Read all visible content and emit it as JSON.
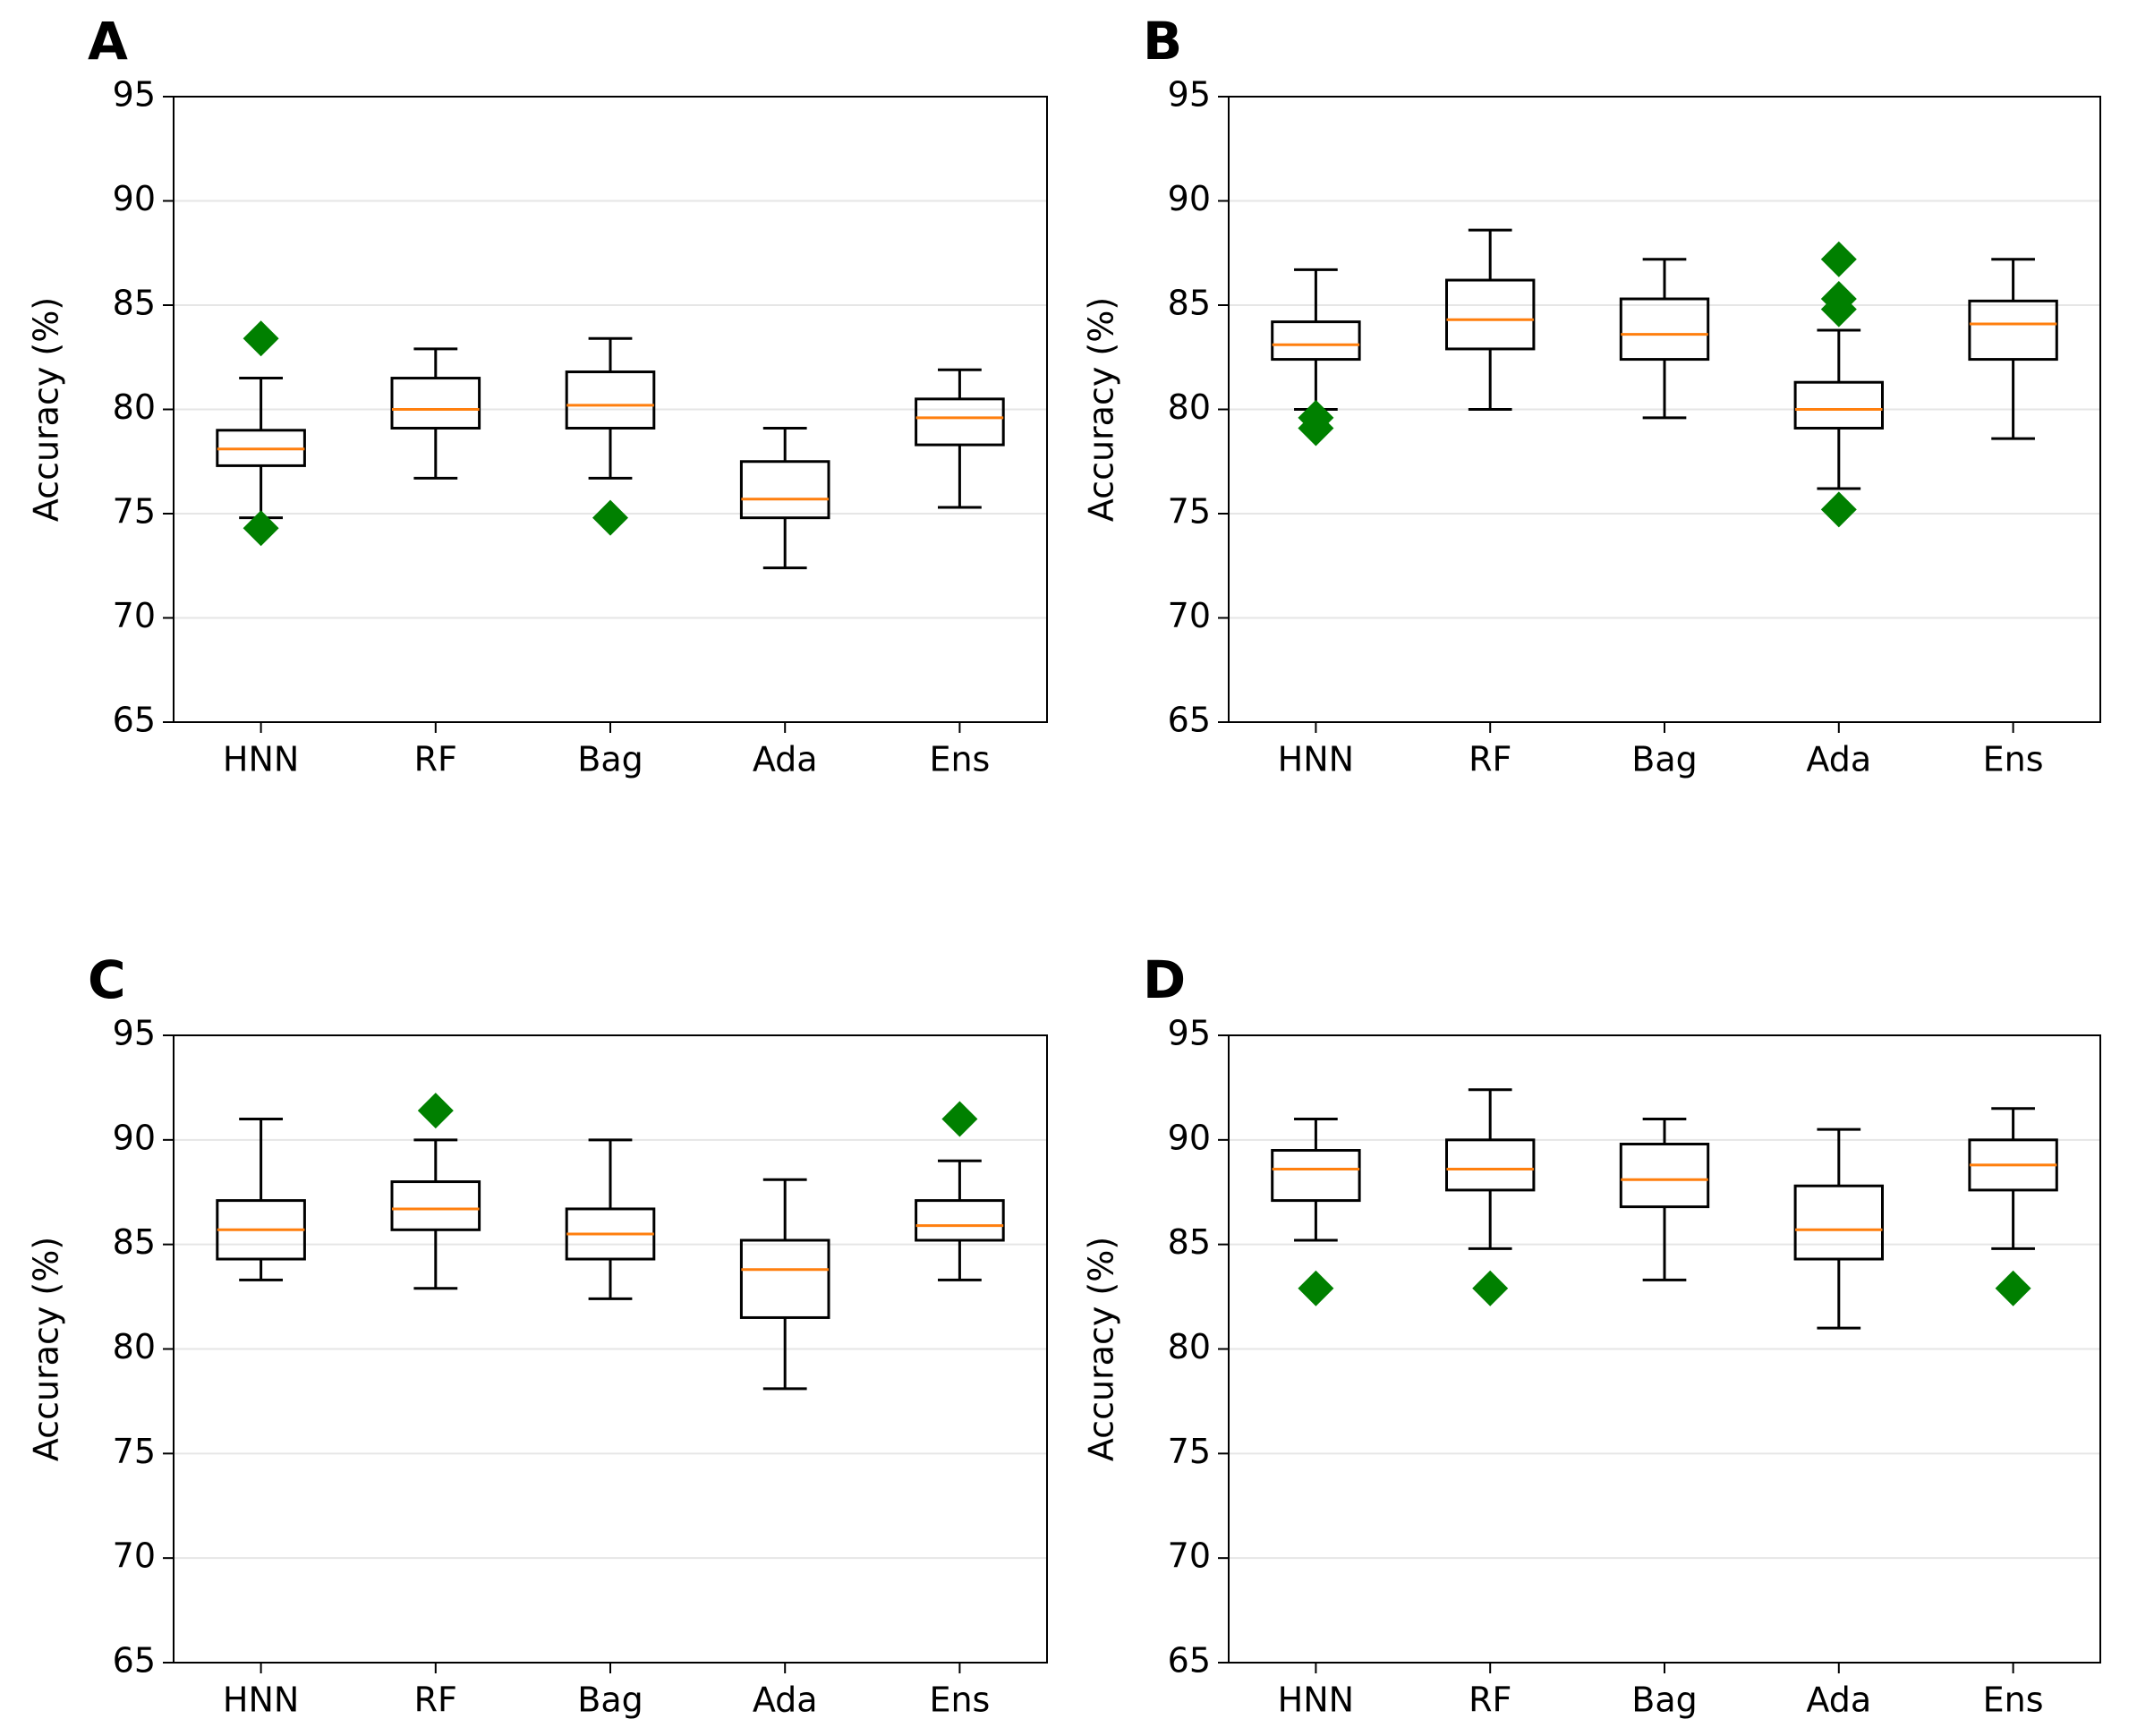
{
  "chart_data": [
    {
      "type": "box",
      "title": "A",
      "y_label": "Accuracy (%)",
      "categories": [
        "HNN",
        "RF",
        "Bag",
        "Ada",
        "Ens"
      ],
      "boxes": [
        {
          "whisker_low": 74.8,
          "q1": 77.3,
          "median": 78.1,
          "q3": 79.0,
          "whisker_high": 81.5,
          "outliers": [
            83.4,
            74.3
          ]
        },
        {
          "whisker_low": 76.7,
          "q1": 79.1,
          "median": 80.0,
          "q3": 81.5,
          "whisker_high": 82.9,
          "outliers": []
        },
        {
          "whisker_low": 76.7,
          "q1": 79.1,
          "median": 80.2,
          "q3": 81.8,
          "whisker_high": 83.4,
          "outliers": [
            74.8
          ]
        },
        {
          "whisker_low": 72.4,
          "q1": 74.8,
          "median": 75.7,
          "q3": 77.5,
          "whisker_high": 79.1,
          "outliers": []
        },
        {
          "whisker_low": 75.3,
          "q1": 78.3,
          "median": 79.6,
          "q3": 80.5,
          "whisker_high": 81.9,
          "outliers": []
        }
      ],
      "ylim": [
        65,
        95
      ],
      "yticks": [
        65,
        70,
        75,
        80,
        85,
        90,
        95
      ],
      "grid": true,
      "box_color": "#000000",
      "median_color": "#ff7f0e",
      "outlier_color": "#008000"
    },
    {
      "type": "box",
      "title": "B",
      "y_label": "Accuracy (%)",
      "categories": [
        "HNN",
        "RF",
        "Bag",
        "Ada",
        "Ens"
      ],
      "boxes": [
        {
          "whisker_low": 80.0,
          "q1": 82.4,
          "median": 83.1,
          "q3": 84.2,
          "whisker_high": 86.7,
          "outliers": [
            79.6,
            79.1
          ]
        },
        {
          "whisker_low": 80.0,
          "q1": 82.9,
          "median": 84.3,
          "q3": 86.2,
          "whisker_high": 88.6,
          "outliers": []
        },
        {
          "whisker_low": 79.6,
          "q1": 82.4,
          "median": 83.6,
          "q3": 85.3,
          "whisker_high": 87.2,
          "outliers": []
        },
        {
          "whisker_low": 76.2,
          "q1": 79.1,
          "median": 80.0,
          "q3": 81.3,
          "whisker_high": 83.8,
          "outliers": [
            87.2,
            85.3,
            84.8,
            75.2
          ]
        },
        {
          "whisker_low": 78.6,
          "q1": 82.4,
          "median": 84.1,
          "q3": 85.2,
          "whisker_high": 87.2,
          "outliers": []
        }
      ],
      "ylim": [
        65,
        95
      ],
      "yticks": [
        65,
        70,
        75,
        80,
        85,
        90,
        95
      ],
      "grid": true,
      "box_color": "#000000",
      "median_color": "#ff7f0e",
      "outlier_color": "#008000"
    },
    {
      "type": "box",
      "title": "C",
      "y_label": "Accuracy (%)",
      "categories": [
        "HNN",
        "RF",
        "Bag",
        "Ada",
        "Ens"
      ],
      "boxes": [
        {
          "whisker_low": 83.3,
          "q1": 84.3,
          "median": 85.7,
          "q3": 87.1,
          "whisker_high": 91.0,
          "outliers": []
        },
        {
          "whisker_low": 82.9,
          "q1": 85.7,
          "median": 86.7,
          "q3": 88.0,
          "whisker_high": 90.0,
          "outliers": [
            91.4
          ]
        },
        {
          "whisker_low": 82.4,
          "q1": 84.3,
          "median": 85.5,
          "q3": 86.7,
          "whisker_high": 90.0,
          "outliers": []
        },
        {
          "whisker_low": 78.1,
          "q1": 81.5,
          "median": 83.8,
          "q3": 85.2,
          "whisker_high": 88.1,
          "outliers": []
        },
        {
          "whisker_low": 83.3,
          "q1": 85.2,
          "median": 85.9,
          "q3": 87.1,
          "whisker_high": 89.0,
          "outliers": [
            91.0
          ]
        }
      ],
      "ylim": [
        65,
        95
      ],
      "yticks": [
        65,
        70,
        75,
        80,
        85,
        90,
        95
      ],
      "grid": true,
      "box_color": "#000000",
      "median_color": "#ff7f0e",
      "outlier_color": "#008000"
    },
    {
      "type": "box",
      "title": "D",
      "y_label": "Accuracy (%)",
      "categories": [
        "HNN",
        "RF",
        "Bag",
        "Ada",
        "Ens"
      ],
      "boxes": [
        {
          "whisker_low": 85.2,
          "q1": 87.1,
          "median": 88.6,
          "q3": 89.5,
          "whisker_high": 91.0,
          "outliers": [
            82.9
          ]
        },
        {
          "whisker_low": 84.8,
          "q1": 87.6,
          "median": 88.6,
          "q3": 90.0,
          "whisker_high": 92.4,
          "outliers": [
            82.9
          ]
        },
        {
          "whisker_low": 83.3,
          "q1": 86.8,
          "median": 88.1,
          "q3": 89.8,
          "whisker_high": 91.0,
          "outliers": []
        },
        {
          "whisker_low": 81.0,
          "q1": 84.3,
          "median": 85.7,
          "q3": 87.8,
          "whisker_high": 90.5,
          "outliers": []
        },
        {
          "whisker_low": 84.8,
          "q1": 87.6,
          "median": 88.8,
          "q3": 90.0,
          "whisker_high": 91.5,
          "outliers": [
            82.9
          ]
        }
      ],
      "ylim": [
        65,
        95
      ],
      "yticks": [
        65,
        70,
        75,
        80,
        85,
        90,
        95
      ],
      "grid": true,
      "box_color": "#000000",
      "median_color": "#ff7f0e",
      "outlier_color": "#008000"
    }
  ]
}
